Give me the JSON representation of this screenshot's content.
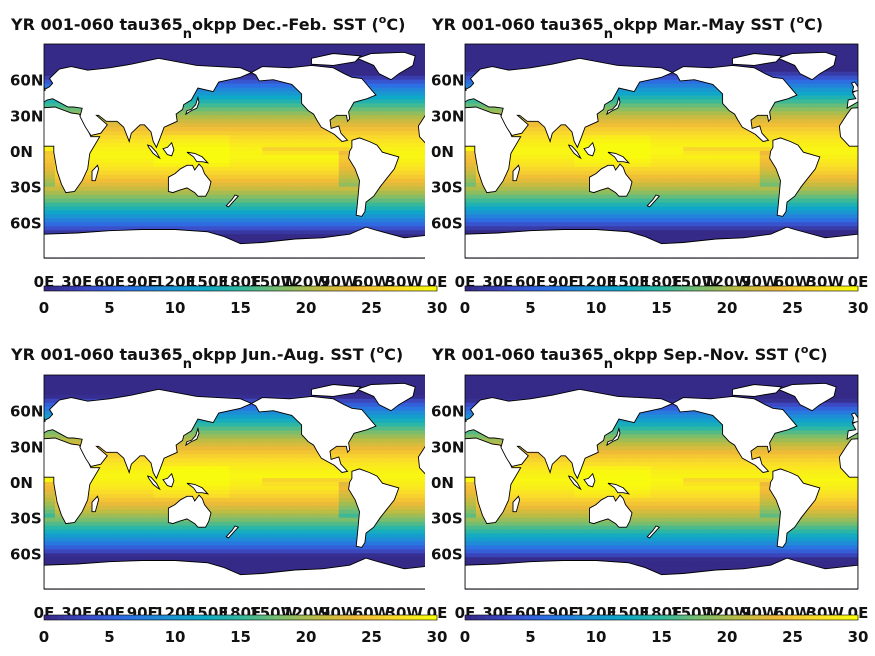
{
  "chart_data": [
    {
      "type": "heatmap",
      "title_parts": [
        "YR 001-060 tau365",
        "n",
        "okpp Dec.-Feb. SST (",
        "o",
        "C)"
      ],
      "season": "Dec.-Feb.",
      "lat_ticks": [
        "60N",
        "30N",
        "0N",
        "30S",
        "60S"
      ],
      "lon_ticks": [
        "0E",
        "30E",
        "60E",
        "90E",
        "120E",
        "150E",
        "180E",
        "150W",
        "120W",
        "90W",
        "60W",
        "30W",
        "0E"
      ],
      "colorbar_ticks": [
        "0",
        "5",
        "10",
        "15",
        "20",
        "25",
        "30"
      ],
      "clim": [
        0,
        30
      ],
      "colormap": "parula"
    },
    {
      "type": "heatmap",
      "title_parts": [
        "YR 001-060 tau365",
        "n",
        "okpp Mar.-May SST (",
        "o",
        "C)"
      ],
      "season": "Mar.-May",
      "lat_ticks": [
        "60N",
        "30N",
        "0N",
        "30S",
        "60S"
      ],
      "lon_ticks": [
        "0E",
        "30E",
        "60E",
        "90E",
        "120E",
        "150E",
        "180E",
        "150W",
        "120W",
        "90W",
        "60W",
        "30W",
        "0E"
      ],
      "colorbar_ticks": [
        "0",
        "5",
        "10",
        "15",
        "20",
        "25",
        "30"
      ],
      "clim": [
        0,
        30
      ],
      "colormap": "parula"
    },
    {
      "type": "heatmap",
      "title_parts": [
        "YR 001-060 tau365",
        "n",
        "okpp Jun.-Aug. SST (",
        "o",
        "C)"
      ],
      "season": "Jun.-Aug.",
      "lat_ticks": [
        "60N",
        "30N",
        "0N",
        "30S",
        "60S"
      ],
      "lon_ticks": [
        "0E",
        "30E",
        "60E",
        "90E",
        "120E",
        "150E",
        "180E",
        "150W",
        "120W",
        "90W",
        "60W",
        "30W",
        "0E"
      ],
      "colorbar_ticks": [
        "0",
        "5",
        "10",
        "15",
        "20",
        "25",
        "30"
      ],
      "clim": [
        0,
        30
      ],
      "colormap": "parula"
    },
    {
      "type": "heatmap",
      "title_parts": [
        "YR 001-060 tau365",
        "n",
        "okpp Sep.-Nov. SST (",
        "o",
        "C)"
      ],
      "season": "Sep.-Nov.",
      "lat_ticks": [
        "60N",
        "30N",
        "0N",
        "30S",
        "60S"
      ],
      "lon_ticks": [
        "0E",
        "30E",
        "60E",
        "90E",
        "120E",
        "150E",
        "180E",
        "150W",
        "120W",
        "90W",
        "60W",
        "30W",
        "0E"
      ],
      "colorbar_ticks": [
        "0",
        "5",
        "10",
        "15",
        "20",
        "25",
        "30"
      ],
      "clim": [
        0,
        30
      ],
      "colormap": "parula"
    }
  ],
  "colors": {
    "parula": [
      "#352a87",
      "#3d4bc6",
      "#2d6ee4",
      "#1f8ed5",
      "#0ea8c8",
      "#31b89f",
      "#7bbd6c",
      "#bcbc43",
      "#f0ba38",
      "#fadc2a",
      "#f9fb0e"
    ],
    "land": "#ffffff",
    "coast": "#000000"
  }
}
